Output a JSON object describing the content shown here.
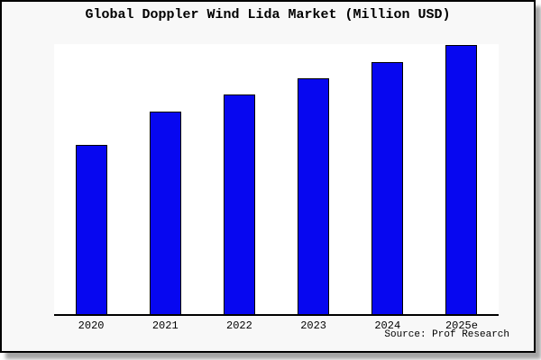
{
  "figure": {
    "background": "#f8f8f8",
    "border_color": "#000000",
    "plot_background": "#ffffff"
  },
  "chart_data": {
    "type": "bar",
    "title": "Global Doppler Wind Lida Market (Million USD)",
    "categories": [
      "2020",
      "2021",
      "2022",
      "2023",
      "2024",
      "2025e"
    ],
    "values": [
      62.7,
      74.9,
      81.3,
      87.4,
      93.4,
      99.6
    ],
    "value_note": "y-axis has no ticks or labels; values estimated as percent of plot height",
    "ylim": [
      0,
      100
    ],
    "xlabel": "",
    "ylabel": "",
    "grid": false,
    "legend": false,
    "bar_color": "#0707f0",
    "bar_edge_color": "#000000",
    "axis_line_color": "#000000"
  },
  "footer": {
    "source_label": "Source: Prof Research"
  }
}
